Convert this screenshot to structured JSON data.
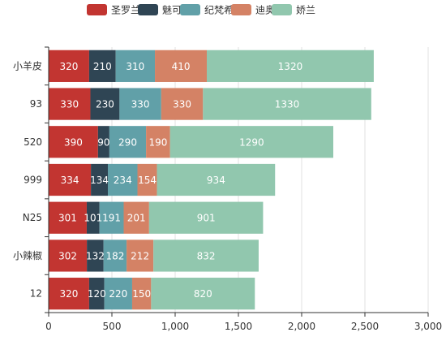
{
  "chart_data": {
    "type": "bar",
    "orientation": "horizontal",
    "stacked": true,
    "categories": [
      "小羊皮",
      "93",
      "520",
      "999",
      "N25",
      "小辣椒",
      "12"
    ],
    "series": [
      {
        "name": "圣罗兰",
        "color": "#c23531",
        "values": [
          320,
          330,
          390,
          334,
          301,
          302,
          320
        ]
      },
      {
        "name": "魅可",
        "color": "#2f4554",
        "values": [
          210,
          230,
          90,
          134,
          101,
          132,
          120
        ]
      },
      {
        "name": "纪梵希",
        "color": "#61a0a8",
        "values": [
          310,
          330,
          290,
          234,
          191,
          182,
          220
        ]
      },
      {
        "name": "迪奥",
        "color": "#d48265",
        "values": [
          410,
          330,
          190,
          154,
          201,
          212,
          150
        ]
      },
      {
        "name": "娇兰",
        "color": "#91c7ae",
        "values": [
          1320,
          1330,
          1290,
          934,
          901,
          832,
          820
        ]
      }
    ],
    "xlim": [
      0,
      3000
    ],
    "xticks": [
      0,
      500,
      1000,
      1500,
      2000,
      2500,
      3000
    ],
    "xtick_labels": [
      "0",
      "500",
      "1,000",
      "1,500",
      "2,000",
      "2,500",
      "3,000"
    ],
    "grid": true,
    "legend": "top-center"
  }
}
